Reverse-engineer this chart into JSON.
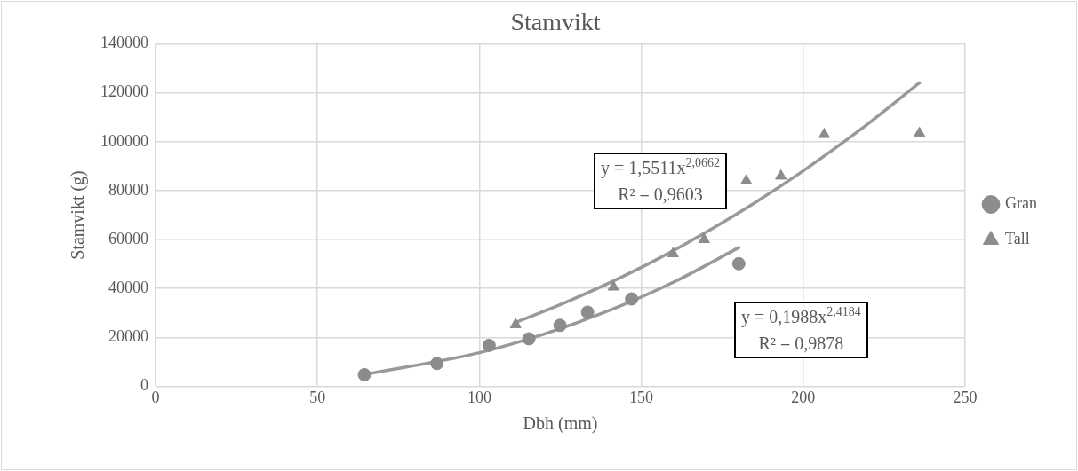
{
  "chart_data": {
    "type": "scatter",
    "title": "Stamvikt",
    "xlabel": "Dbh (mm)",
    "ylabel": "Stamvikt (g)",
    "xlim": [
      0,
      250
    ],
    "xticks": [
      0,
      50,
      100,
      150,
      200,
      250
    ],
    "ylim": [
      0,
      140000
    ],
    "yticks": [
      0,
      20000,
      40000,
      60000,
      80000,
      100000,
      120000,
      140000
    ],
    "grid": true,
    "legend": "right",
    "series": [
      {
        "name": "Gran",
        "type": "scatter",
        "marker": "circle",
        "color": "#8c8c8c",
        "x": [
          64.5,
          86.9,
          103,
          115.3,
          124.9,
          133.4,
          147,
          180.1
        ],
        "values": [
          4700,
          9300,
          16700,
          19400,
          24900,
          30300,
          35700,
          50100
        ]
      },
      {
        "name": "Tall",
        "type": "scatter",
        "marker": "triangle",
        "color": "#8c8c8c",
        "x": [
          111.2,
          141.4,
          159.8,
          169.4,
          182.4,
          193.1,
          206.5,
          235.9
        ],
        "values": [
          25200,
          40600,
          54200,
          60000,
          84000,
          86000,
          103000,
          103500
        ]
      },
      {
        "type": "line",
        "marker": "none",
        "color": "#999999",
        "x": [
          64.5,
          100,
          120,
          140,
          160,
          180.1
        ],
        "values": [
          4800,
          13700,
          21300,
          30900,
          42600,
          56700
        ]
      },
      {
        "type": "line",
        "marker": "none",
        "color": "#999999",
        "x": [
          111.2,
          125,
          140,
          155,
          170,
          185,
          200,
          218,
          235.9
        ],
        "values": [
          26100,
          33400,
          42200,
          52000,
          63000,
          75000,
          88100,
          105300,
          124100
        ]
      }
    ],
    "annotations": [
      "y = 1,5511x$^{2,0662}$\nR² = 0,9603",
      "y = 0,1988x$^{2,4184}$\nR² = 0,9878"
    ]
  }
}
